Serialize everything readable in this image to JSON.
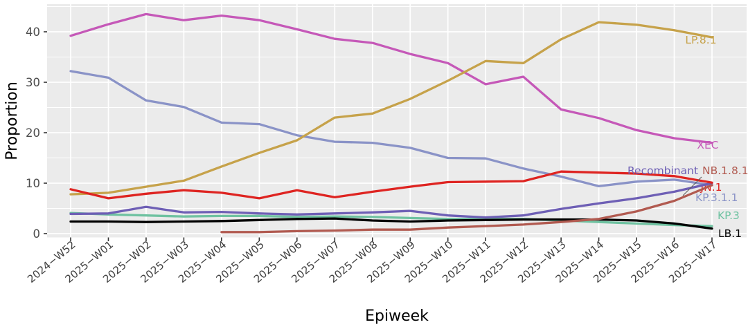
{
  "chart_data": {
    "type": "line",
    "title": "",
    "xlabel": "Epiweek",
    "ylabel": "Proportion",
    "x_categories": [
      "2024-W52",
      "2025-W01",
      "2025-W02",
      "2025-W03",
      "2025-W04",
      "2025-W05",
      "2025-W06",
      "2025-W07",
      "2025-W08",
      "2025-W09",
      "2025-W10",
      "2025-W11",
      "2025-W12",
      "2025-W13",
      "2025-W14",
      "2025-W15",
      "2025-W16",
      "2025-W17"
    ],
    "y_ticks": [
      0,
      10,
      20,
      30,
      40
    ],
    "y_minor_ticks": [
      5,
      15,
      25,
      35,
      45
    ],
    "ylim": [
      0,
      45.5
    ],
    "grid": "white major+minor horizontal and major vertical gridlines on gray panel",
    "legend": "direct labels at right end of each line",
    "panel_color": "#ebebeb",
    "series": [
      {
        "name": "XEC",
        "color": "#c558b8",
        "values": [
          39.2,
          41.5,
          43.5,
          42.3,
          43.2,
          42.3,
          40.5,
          38.6,
          37.8,
          35.6,
          33.8,
          29.6,
          31.1,
          24.6,
          22.9,
          20.5,
          18.9,
          18.0
        ]
      },
      {
        "name": "KP.3.1.1",
        "color": "#8a93c7",
        "values": [
          32.2,
          30.9,
          26.4,
          25.1,
          22.0,
          21.7,
          19.5,
          18.2,
          18.0,
          17.0,
          15.0,
          14.9,
          12.9,
          11.3,
          9.4,
          10.3,
          10.7,
          9.6
        ]
      },
      {
        "name": "LP.8.1",
        "color": "#c6a24a",
        "values": [
          7.8,
          8.1,
          9.3,
          10.5,
          13.3,
          16.0,
          18.5,
          23.0,
          23.8,
          26.7,
          30.3,
          34.2,
          33.8,
          38.5,
          41.9,
          41.4,
          40.3,
          38.9
        ]
      },
      {
        "name": "KP.3",
        "color": "#6fc2a1",
        "values": [
          4.1,
          3.8,
          3.6,
          3.4,
          3.5,
          3.5,
          3.3,
          3.4,
          3.3,
          3.1,
          2.9,
          2.9,
          2.9,
          2.6,
          2.3,
          2.0,
          1.7,
          1.5
        ]
      },
      {
        "name": "LB.1",
        "color": "#000000",
        "values": [
          2.4,
          2.4,
          2.3,
          2.4,
          2.5,
          2.7,
          2.9,
          3.0,
          2.6,
          2.4,
          2.6,
          2.7,
          2.8,
          2.8,
          2.8,
          2.6,
          2.0,
          1.0
        ]
      },
      {
        "name": "Recombinant",
        "color": "#6e5fb5",
        "values": [
          3.9,
          4.0,
          5.3,
          4.2,
          4.3,
          4.0,
          3.8,
          4.0,
          4.2,
          4.5,
          3.6,
          3.2,
          3.6,
          4.9,
          6.0,
          7.0,
          8.3,
          10.0
        ]
      },
      {
        "name": "NB.1.8.1",
        "color": "#b15a50",
        "values": [
          null,
          null,
          null,
          null,
          0.3,
          0.3,
          0.5,
          0.6,
          0.8,
          0.8,
          1.2,
          1.5,
          1.8,
          2.3,
          2.9,
          4.4,
          6.5,
          9.6
        ]
      },
      {
        "name": "JN.1",
        "color": "#de2421",
        "values": [
          8.8,
          7.0,
          7.9,
          8.6,
          8.1,
          7.0,
          8.6,
          7.2,
          8.3,
          9.3,
          10.2,
          10.3,
          10.4,
          12.3,
          12.1,
          11.9,
          11.4,
          10.1
        ]
      }
    ]
  }
}
